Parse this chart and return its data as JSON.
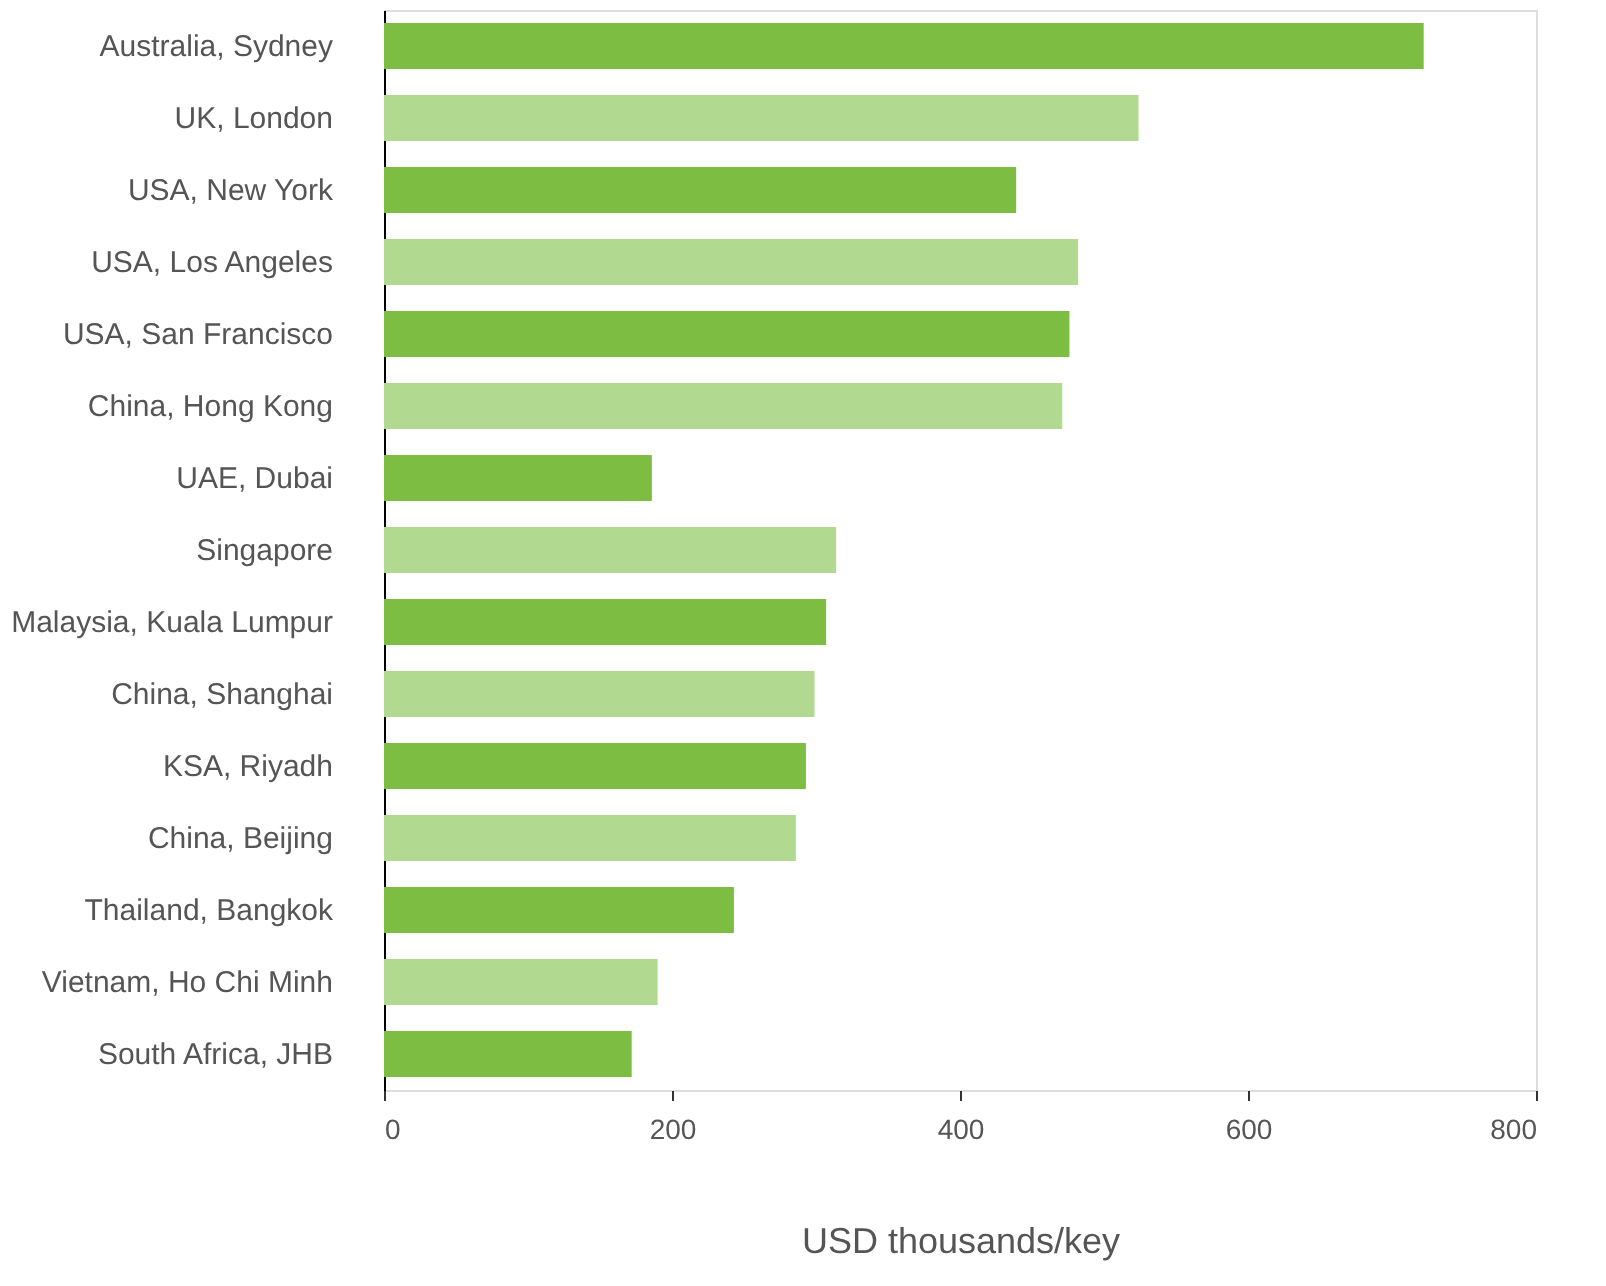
{
  "chart_data": {
    "type": "bar",
    "orientation": "horizontal",
    "xlabel": "USD thousands/key",
    "categories": [
      "Australia, Sydney",
      "UK, London",
      "USA, New York",
      "USA, Los Angeles",
      "USA, San Francisco",
      "China, Hong Kong",
      "UAE, Dubai",
      "Singapore",
      "Malaysia, Kuala Lumpur",
      "China, Shanghai",
      "KSA, Riyadh",
      "China, Beijing",
      "Thailand, Bangkok",
      "Vietnam, Ho Chi Minh",
      "South Africa, JHB"
    ],
    "values": [
      722,
      524,
      439,
      482,
      476,
      471,
      186,
      314,
      307,
      299,
      293,
      286,
      243,
      190,
      172
    ],
    "colors": [
      "#7dbe42",
      "#b1d98f",
      "#7dbe42",
      "#b1d98f",
      "#7dbe42",
      "#b1d98f",
      "#7dbe42",
      "#b1d98f",
      "#7dbe42",
      "#b1d98f",
      "#7dbe42",
      "#b1d98f",
      "#7dbe42",
      "#b1d98f",
      "#7dbe42"
    ],
    "xlim": [
      0,
      800
    ],
    "xticks": [
      0,
      200,
      400,
      600,
      800
    ],
    "grid": false
  }
}
